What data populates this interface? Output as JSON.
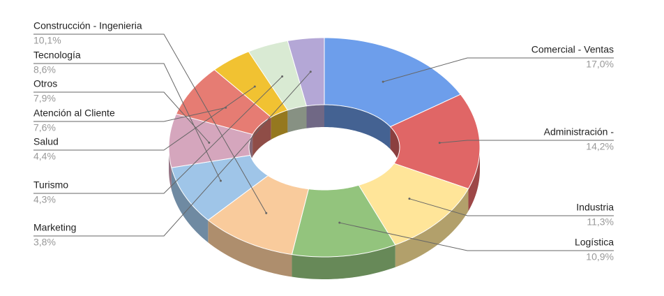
{
  "chart_data": {
    "type": "donut3d",
    "categories": [
      "Comercial - Ventas",
      "Administración -",
      "Industria",
      "Logística",
      "Construcción - Ingenieria",
      "Tecnología",
      "Otros",
      "Atención al Cliente",
      "Salud",
      "Turismo",
      "Marketing"
    ],
    "values": [
      17.0,
      14.2,
      11.3,
      10.9,
      10.1,
      8.6,
      7.9,
      7.6,
      4.4,
      4.3,
      3.8
    ],
    "value_labels": [
      "17,0%",
      "14,2%",
      "11,3%",
      "10,9%",
      "10,1%",
      "8,6%",
      "7,9%",
      "7,6%",
      "4,4%",
      "4,3%",
      "3,8%"
    ],
    "colors": [
      "#6d9eeb",
      "#e06666",
      "#ffe599",
      "#93c47d",
      "#f9cb9c",
      "#9fc5e8",
      "#d5a6bd",
      "#e67c73",
      "#f1c232",
      "#d9ead3",
      "#b4a7d6"
    ]
  }
}
